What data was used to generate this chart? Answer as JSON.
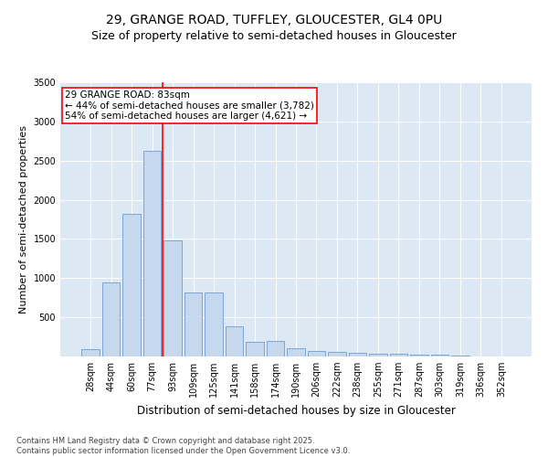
{
  "title1": "29, GRANGE ROAD, TUFFLEY, GLOUCESTER, GL4 0PU",
  "title2": "Size of property relative to semi-detached houses in Gloucester",
  "xlabel": "Distribution of semi-detached houses by size in Gloucester",
  "ylabel": "Number of semi-detached properties",
  "categories": [
    "28sqm",
    "44sqm",
    "60sqm",
    "77sqm",
    "93sqm",
    "109sqm",
    "125sqm",
    "141sqm",
    "158sqm",
    "174sqm",
    "190sqm",
    "206sqm",
    "222sqm",
    "238sqm",
    "255sqm",
    "271sqm",
    "287sqm",
    "303sqm",
    "319sqm",
    "336sqm",
    "352sqm"
  ],
  "values": [
    95,
    950,
    1820,
    2630,
    1480,
    820,
    820,
    380,
    190,
    195,
    100,
    65,
    60,
    50,
    38,
    35,
    25,
    20,
    10,
    5,
    2
  ],
  "bar_color": "#c5d8ee",
  "bar_edge_color": "#5b8fc9",
  "background_color": "#dce9f5",
  "annotation_text": "29 GRANGE ROAD: 83sqm\n← 44% of semi-detached houses are smaller (3,782)\n54% of semi-detached houses are larger (4,621) →",
  "annotation_box_color": "white",
  "annotation_box_edge": "red",
  "red_line_index": 3.5,
  "ylim": [
    0,
    3500
  ],
  "yticks": [
    0,
    500,
    1000,
    1500,
    2000,
    2500,
    3000,
    3500
  ],
  "footer": "Contains HM Land Registry data © Crown copyright and database right 2025.\nContains public sector information licensed under the Open Government Licence v3.0.",
  "title_fontsize": 10,
  "subtitle_fontsize": 9,
  "tick_fontsize": 7,
  "ylabel_fontsize": 8,
  "xlabel_fontsize": 8.5,
  "annotation_fontsize": 7.5,
  "footer_fontsize": 6
}
